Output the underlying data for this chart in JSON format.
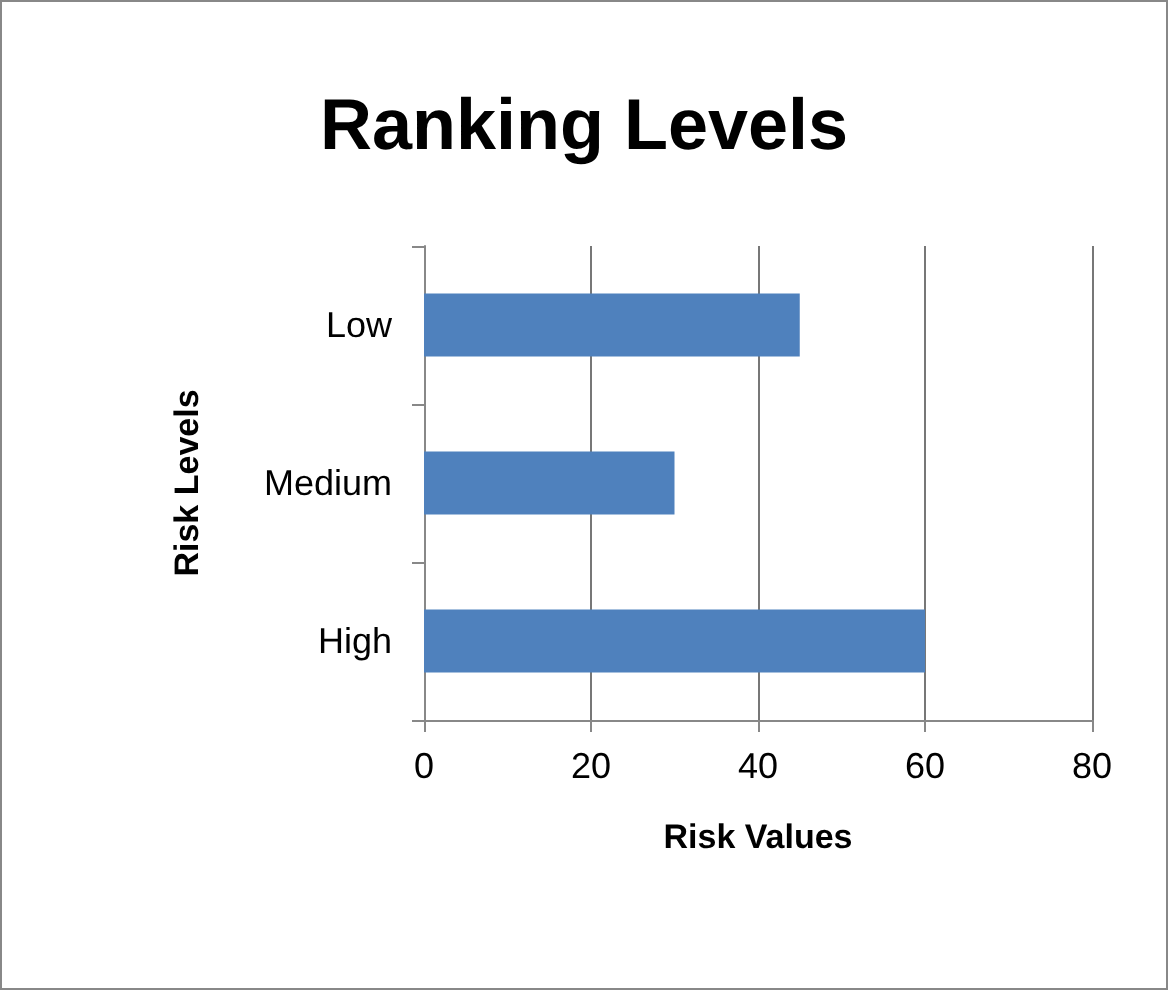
{
  "chart_data": {
    "type": "bar",
    "orientation": "horizontal",
    "title": "Ranking Levels",
    "xlabel": "Risk Values",
    "ylabel": "Risk Levels",
    "categories": [
      "Low",
      "Medium",
      "High"
    ],
    "values": [
      45,
      30,
      60
    ],
    "color": "#4f81bd",
    "xlim": [
      0,
      80
    ],
    "xticks": [
      0,
      20,
      40,
      60,
      80
    ],
    "grid": "x"
  }
}
